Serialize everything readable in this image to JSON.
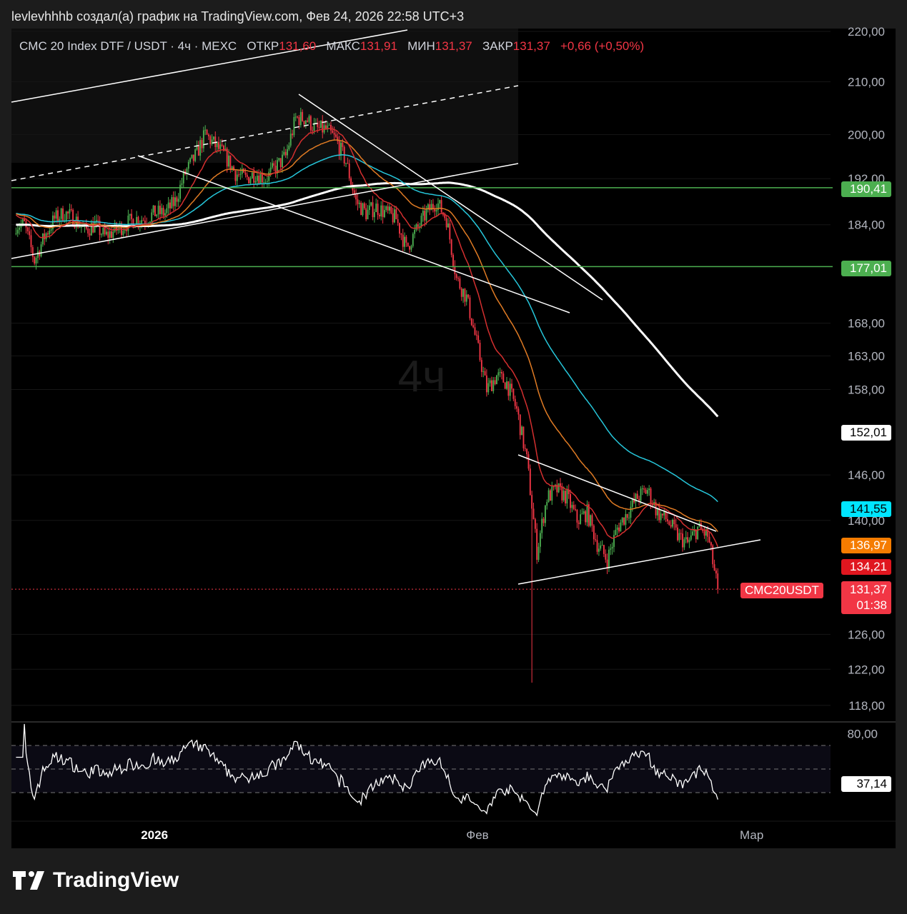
{
  "caption": "levlevhhhb создал(а) график на TradingView.com, Фев 24, 2026 22:58 UTC+3",
  "legend": {
    "symbol": "CMC 20 Index DTF / USDT · 4ч · MEXC",
    "open_label": "ОТКР",
    "open": "131,60",
    "high_label": "МАКС",
    "high": "131,91",
    "low_label": "МИН",
    "low": "131,37",
    "close_label": "ЗАКР",
    "close": "131,37",
    "change": "+0,66 (+0,50%)"
  },
  "watermark": "4ч",
  "colors": {
    "up": "#4caf50",
    "down": "#f23645",
    "ma_white": "#ffffff",
    "ma_cyan": "#26c6da",
    "ma_orange": "#e07b24",
    "ma_red": "#d32f2f",
    "level": "#4caf50"
  },
  "chart_data": {
    "type": "candlestick",
    "interval": "4ч",
    "y_scale": "log",
    "ylim": [
      116,
      222
    ],
    "y_ticks": [
      "220,00",
      "210,00",
      "200,00",
      "192,00",
      "184,00",
      "168,00",
      "163,00",
      "158,00",
      "146,00",
      "140,00",
      "126,00",
      "122,00",
      "118,00"
    ],
    "y_tick_values": [
      220,
      210,
      200,
      192,
      184,
      168,
      163,
      158,
      146,
      140,
      126,
      122,
      118
    ],
    "x_ticks": [
      {
        "label": "2026",
        "date": "2026-01-01"
      },
      {
        "label": "Фев",
        "date": "2026-02-01"
      },
      {
        "label": "Мар",
        "date": "2026-03-01"
      }
    ],
    "daily_close": [
      [
        "2025-12-17",
        184
      ],
      [
        "2025-12-18",
        178
      ],
      [
        "2025-12-19",
        182
      ],
      [
        "2025-12-20",
        185
      ],
      [
        "2025-12-21",
        186
      ],
      [
        "2025-12-22",
        185
      ],
      [
        "2025-12-23",
        183
      ],
      [
        "2025-12-24",
        184
      ],
      [
        "2025-12-25",
        182
      ],
      [
        "2025-12-26",
        183
      ],
      [
        "2025-12-27",
        184
      ],
      [
        "2025-12-28",
        185
      ],
      [
        "2025-12-29",
        185
      ],
      [
        "2025-12-30",
        186
      ],
      [
        "2025-12-31",
        186
      ],
      [
        "2026-01-01",
        188
      ],
      [
        "2026-01-02",
        193
      ],
      [
        "2026-01-03",
        196
      ],
      [
        "2026-01-04",
        200
      ],
      [
        "2026-01-05",
        198
      ],
      [
        "2026-01-06",
        196
      ],
      [
        "2026-01-07",
        193
      ],
      [
        "2026-01-08",
        192
      ],
      [
        "2026-01-09",
        193
      ],
      [
        "2026-01-10",
        192
      ],
      [
        "2026-01-11",
        194
      ],
      [
        "2026-01-12",
        196
      ],
      [
        "2026-01-13",
        203
      ],
      [
        "2026-01-14",
        203
      ],
      [
        "2026-01-15",
        201
      ],
      [
        "2026-01-16",
        201
      ],
      [
        "2026-01-17",
        199
      ],
      [
        "2026-01-18",
        195
      ],
      [
        "2026-01-19",
        188
      ],
      [
        "2026-01-20",
        186
      ],
      [
        "2026-01-21",
        187
      ],
      [
        "2026-01-22",
        186
      ],
      [
        "2026-01-23",
        185
      ],
      [
        "2026-01-24",
        180
      ],
      [
        "2026-01-25",
        183
      ],
      [
        "2026-01-26",
        186
      ],
      [
        "2026-01-27",
        188
      ],
      [
        "2026-01-28",
        185
      ],
      [
        "2026-01-29",
        175
      ],
      [
        "2026-01-30",
        172
      ],
      [
        "2026-01-31",
        165
      ],
      [
        "2026-02-01",
        158
      ],
      [
        "2026-02-02",
        160
      ],
      [
        "2026-02-03",
        159
      ],
      [
        "2026-02-04",
        155
      ],
      [
        "2026-02-05",
        148
      ],
      [
        "2026-02-06",
        136
      ],
      [
        "2026-02-07",
        143
      ],
      [
        "2026-02-08",
        144
      ],
      [
        "2026-02-09",
        143
      ],
      [
        "2026-02-10",
        140
      ],
      [
        "2026-02-11",
        141
      ],
      [
        "2026-02-12",
        137
      ],
      [
        "2026-02-13",
        135
      ],
      [
        "2026-02-14",
        139
      ],
      [
        "2026-02-15",
        141
      ],
      [
        "2026-02-16",
        143
      ],
      [
        "2026-02-17",
        144
      ],
      [
        "2026-02-18",
        141
      ],
      [
        "2026-02-19",
        140
      ],
      [
        "2026-02-20",
        138
      ],
      [
        "2026-02-21",
        137
      ],
      [
        "2026-02-22",
        139
      ],
      [
        "2026-02-23",
        138
      ],
      [
        "2026-02-24",
        131.37
      ]
    ],
    "notable_low": {
      "date": "2026-02-06",
      "low": 120.5
    },
    "levels": [
      {
        "value": 190.41,
        "label": "190,41"
      },
      {
        "value": 177.01,
        "label": "177,01"
      }
    ],
    "ma_labels": {
      "white": "152,01",
      "cyan": "141,55",
      "orange": "136,97",
      "red": "134,21"
    },
    "last_price": {
      "symbol": "CMC20USDT",
      "value": 131.37,
      "label": "131,37",
      "countdown": "01:38"
    },
    "rsi": {
      "value_label": "37,14",
      "value": 37.14,
      "tick": "80,00",
      "bands": [
        70,
        50,
        30
      ]
    }
  },
  "brand": "TradingView"
}
